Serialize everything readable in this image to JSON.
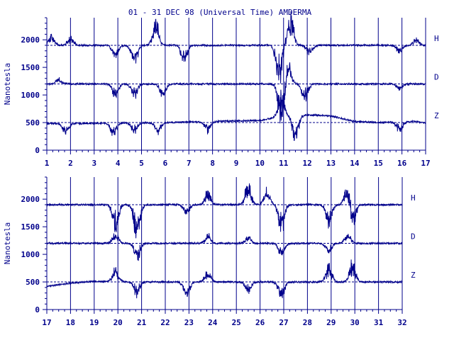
{
  "title": "01 - 31 DEC 98 (Universal Time) AMDERMA",
  "chart_data": [
    {
      "type": "line",
      "panel": "top",
      "title": "01 - 31 DEC 98 (Universal Time) AMDERMA",
      "xlabel": "",
      "ylabel": "Nanotesla",
      "xlim": [
        1,
        17
      ],
      "ylim": [
        0,
        2400
      ],
      "x_ticks": [
        "1",
        "2",
        "3",
        "4",
        "5",
        "6",
        "7",
        "8",
        "9",
        "10",
        "11",
        "12",
        "13",
        "14",
        "15",
        "16",
        "17"
      ],
      "y_ticks": [
        "0",
        "500",
        "1000",
        "1500",
        "2000"
      ],
      "grid": "vertical lines at each day",
      "baselines": {
        "H": 1900,
        "D": 1200,
        "Z": 500
      },
      "series": [
        {
          "name": "H",
          "baseline": 1900,
          "disturbances": [
            {
              "day": 1.2,
              "amp": 150
            },
            {
              "day": 2.0,
              "amp": 120
            },
            {
              "day": 3.9,
              "amp": -200
            },
            {
              "day": 4.7,
              "amp": -300
            },
            {
              "day": 5.6,
              "amp": 350
            },
            {
              "day": 6.8,
              "amp": -250
            },
            {
              "day": 10.8,
              "amp": -550
            },
            {
              "day": 11.3,
              "amp": 450
            },
            {
              "day": 12.1,
              "amp": -150
            },
            {
              "day": 15.9,
              "amp": -120
            },
            {
              "day": 16.6,
              "amp": 100
            }
          ]
        },
        {
          "name": "D",
          "baseline": 1200,
          "disturbances": [
            {
              "day": 1.5,
              "amp": 80
            },
            {
              "day": 3.9,
              "amp": -200
            },
            {
              "day": 4.7,
              "amp": -200
            },
            {
              "day": 5.9,
              "amp": -220
            },
            {
              "day": 10.9,
              "amp": -650
            },
            {
              "day": 11.2,
              "amp": 300
            },
            {
              "day": 11.9,
              "amp": -250
            },
            {
              "day": 15.9,
              "amp": -90
            }
          ]
        },
        {
          "name": "Z",
          "baseline": 500,
          "disturbances": [
            {
              "day": 1.8,
              "amp": -180
            },
            {
              "day": 3.8,
              "amp": -200
            },
            {
              "day": 4.7,
              "amp": -150
            },
            {
              "day": 5.7,
              "amp": -150
            },
            {
              "day": 7.8,
              "amp": -150
            },
            {
              "day": 10.9,
              "amp": 350
            },
            {
              "day": 11.5,
              "amp": -400
            },
            {
              "day": 15.9,
              "amp": -150
            }
          ],
          "trend": [
            [
              1,
              480
            ],
            [
              6,
              500
            ],
            [
              10,
              540
            ],
            [
              11,
              620
            ],
            [
              12,
              640
            ],
            [
              13,
              620
            ],
            [
              14,
              520
            ],
            [
              15,
              500
            ],
            [
              16.5,
              520
            ],
            [
              17,
              490
            ]
          ]
        }
      ]
    },
    {
      "type": "line",
      "panel": "bottom",
      "xlabel": "",
      "ylabel": "Nanotesla",
      "xlim": [
        17,
        32
      ],
      "ylim": [
        0,
        2400
      ],
      "x_ticks": [
        "17",
        "18",
        "19",
        "20",
        "21",
        "22",
        "23",
        "24",
        "25",
        "26",
        "27",
        "28",
        "29",
        "30",
        "31",
        "32"
      ],
      "y_ticks": [
        "0",
        "500",
        "1000",
        "1500",
        "2000"
      ],
      "grid": "vertical lines at each day",
      "baselines": {
        "H": 1900,
        "D": 1200,
        "Z": 500
      },
      "series": [
        {
          "name": "H",
          "baseline": 1900,
          "disturbances": [
            {
              "day": 19.9,
              "amp": -350
            },
            {
              "day": 20.8,
              "amp": -500
            },
            {
              "day": 22.9,
              "amp": -150
            },
            {
              "day": 23.8,
              "amp": 200
            },
            {
              "day": 25.5,
              "amp": 300
            },
            {
              "day": 26.3,
              "amp": 250
            },
            {
              "day": 26.9,
              "amp": -400
            },
            {
              "day": 28.9,
              "amp": -300
            },
            {
              "day": 29.7,
              "amp": 300
            },
            {
              "day": 29.9,
              "amp": -350
            }
          ]
        },
        {
          "name": "D",
          "baseline": 1200,
          "disturbances": [
            {
              "day": 19.9,
              "amp": 150
            },
            {
              "day": 20.8,
              "amp": -250
            },
            {
              "day": 23.8,
              "amp": 120
            },
            {
              "day": 25.5,
              "amp": 100
            },
            {
              "day": 26.9,
              "amp": -200
            },
            {
              "day": 28.9,
              "amp": -150
            },
            {
              "day": 29.7,
              "amp": 150
            }
          ]
        },
        {
          "name": "Z",
          "baseline": 500,
          "disturbances": [
            {
              "day": 19.9,
              "amp": 200
            },
            {
              "day": 20.8,
              "amp": -200
            },
            {
              "day": 22.9,
              "amp": -250
            },
            {
              "day": 23.8,
              "amp": 150
            },
            {
              "day": 25.5,
              "amp": -150
            },
            {
              "day": 26.9,
              "amp": -250
            },
            {
              "day": 28.9,
              "amp": 250
            },
            {
              "day": 29.9,
              "amp": 300
            }
          ],
          "trend": [
            [
              17,
              420
            ],
            [
              18,
              480
            ],
            [
              19,
              510
            ],
            [
              21,
              500
            ],
            [
              32,
              500
            ]
          ]
        }
      ]
    }
  ]
}
